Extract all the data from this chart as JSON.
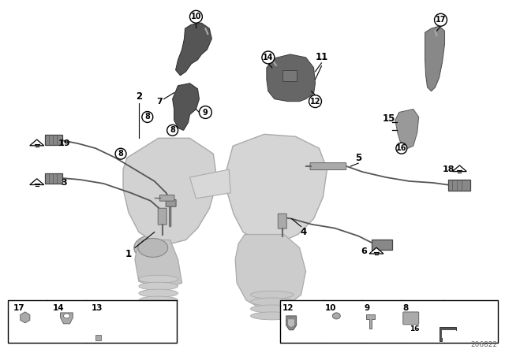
{
  "bg_color": "#ffffff",
  "diagram_id": "206822",
  "fig_width": 6.4,
  "fig_height": 4.48,
  "dpi": 100,
  "pipe_color": "#d0d0d0",
  "pipe_edge": "#aaaaaa",
  "dark_bracket": "#555555",
  "wire_color": "#555555",
  "sensor_color": "#888888"
}
